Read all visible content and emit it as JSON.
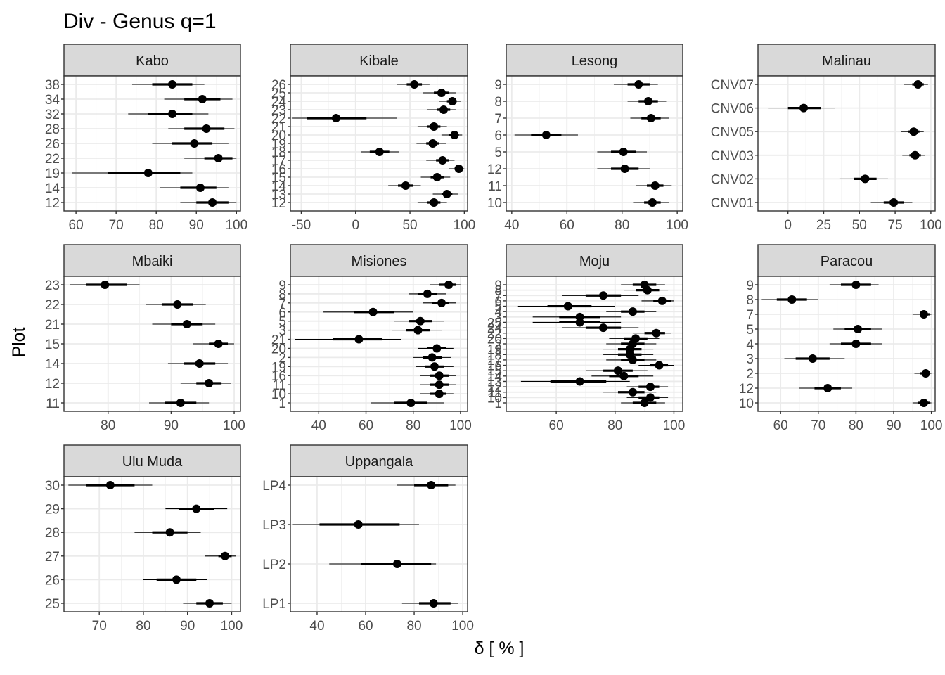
{
  "title": "Div - Genus q=1",
  "chart_data": {
    "type": "forest",
    "title": "Div - Genus q=1",
    "xlabel": "δ [ % ]",
    "ylabel": "Plot",
    "grid": true,
    "panels": [
      {
        "name": "Kabo",
        "xlim": [
          57,
          101
        ],
        "xticks": [
          60,
          70,
          80,
          90,
          100
        ],
        "points": [
          {
            "plot": "38",
            "est": 84,
            "lo": 79,
            "hi": 89,
            "llo": 74,
            "hhi": 92
          },
          {
            "plot": "34",
            "est": 91.5,
            "lo": 87,
            "hi": 96,
            "llo": 82,
            "hhi": 99
          },
          {
            "plot": "32",
            "est": 84,
            "lo": 78,
            "hi": 89,
            "llo": 73,
            "hhi": 93
          },
          {
            "plot": "28",
            "est": 92.5,
            "lo": 87,
            "hi": 97,
            "llo": 83,
            "hhi": 99.5
          },
          {
            "plot": "26",
            "est": 89.5,
            "lo": 84,
            "hi": 94,
            "llo": 79,
            "hhi": 98
          },
          {
            "plot": "22",
            "est": 95.5,
            "lo": 92,
            "hi": 99,
            "llo": 87,
            "hhi": 100
          },
          {
            "plot": "19",
            "est": 78,
            "lo": 68,
            "hi": 86,
            "llo": 59,
            "hhi": 89
          },
          {
            "plot": "14",
            "est": 91,
            "lo": 86,
            "hi": 95,
            "llo": 81,
            "hhi": 98
          },
          {
            "plot": "12",
            "est": 94,
            "lo": 90,
            "hi": 98,
            "llo": 86,
            "hhi": 100
          }
        ]
      },
      {
        "name": "Kibale",
        "xlim": [
          -60,
          103
        ],
        "xticks": [
          -50,
          0,
          50,
          100
        ],
        "points": [
          {
            "plot": "26",
            "est": 54,
            "lo": 47,
            "hi": 61,
            "llo": 38,
            "hhi": 68
          },
          {
            "plot": "25",
            "est": 79,
            "lo": 72,
            "hi": 86,
            "llo": 62,
            "hhi": 92
          },
          {
            "plot": "24",
            "est": 89,
            "lo": 84,
            "hi": 93,
            "llo": 77,
            "hhi": 97
          },
          {
            "plot": "23",
            "est": 81,
            "lo": 75,
            "hi": 87,
            "llo": 66,
            "hhi": 92
          },
          {
            "plot": "22",
            "est": -18,
            "lo": -45,
            "hi": 10,
            "llo": -58,
            "hhi": 38
          },
          {
            "plot": "21",
            "est": 72,
            "lo": 66,
            "hi": 78,
            "llo": 57,
            "hhi": 84
          },
          {
            "plot": "20",
            "est": 91,
            "lo": 86,
            "hi": 95,
            "llo": 79,
            "hhi": 98
          },
          {
            "plot": "19",
            "est": 71,
            "lo": 65,
            "hi": 77,
            "llo": 56,
            "hhi": 83
          },
          {
            "plot": "18",
            "est": 22,
            "lo": 13,
            "hi": 31,
            "llo": 5,
            "hhi": 40
          },
          {
            "plot": "17",
            "est": 80,
            "lo": 74,
            "hi": 86,
            "llo": 65,
            "hhi": 91
          },
          {
            "plot": "16",
            "est": 95,
            "lo": 91,
            "hi": 98,
            "llo": 86,
            "hhi": 100
          },
          {
            "plot": "15",
            "est": 75,
            "lo": 69,
            "hi": 81,
            "llo": 60,
            "hhi": 87
          },
          {
            "plot": "14",
            "est": 46,
            "lo": 39,
            "hi": 53,
            "llo": 30,
            "hhi": 60
          },
          {
            "plot": "13",
            "est": 84,
            "lo": 79,
            "hi": 89,
            "llo": 71,
            "hhi": 94
          },
          {
            "plot": "12",
            "est": 72,
            "lo": 66,
            "hi": 78,
            "llo": 57,
            "hhi": 84
          }
        ]
      },
      {
        "name": "Lesong",
        "xlim": [
          38,
          102
        ],
        "xticks": [
          40,
          60,
          80,
          100
        ],
        "points": [
          {
            "plot": "9",
            "est": 86,
            "lo": 82,
            "hi": 90,
            "llo": 77,
            "hhi": 93
          },
          {
            "plot": "8",
            "est": 89.5,
            "lo": 86,
            "hi": 93,
            "llo": 82,
            "hhi": 96
          },
          {
            "plot": "7",
            "est": 90.5,
            "lo": 87,
            "hi": 94,
            "llo": 83,
            "hhi": 97
          },
          {
            "plot": "6",
            "est": 52.5,
            "lo": 47,
            "hi": 58,
            "llo": 41,
            "hhi": 64
          },
          {
            "plot": "5",
            "est": 80.5,
            "lo": 76,
            "hi": 85,
            "llo": 71,
            "hhi": 89
          },
          {
            "plot": "12",
            "est": 81,
            "lo": 76,
            "hi": 86,
            "llo": 71,
            "hhi": 90
          },
          {
            "plot": "11",
            "est": 92,
            "lo": 89,
            "hi": 95,
            "llo": 85,
            "hhi": 98
          },
          {
            "plot": "10",
            "est": 91,
            "lo": 88,
            "hi": 94,
            "llo": 84,
            "hhi": 97
          }
        ]
      },
      {
        "name": "Malinau",
        "xlim": [
          -21,
          103
        ],
        "xticks": [
          0,
          25,
          50,
          75,
          100
        ],
        "points": [
          {
            "plot": "CNV07",
            "est": 91,
            "lo": 87,
            "hi": 95,
            "llo": 81,
            "hhi": 98
          },
          {
            "plot": "CNV06",
            "est": 11,
            "lo": 0,
            "hi": 23,
            "llo": -14,
            "hhi": 33
          },
          {
            "plot": "CNV05",
            "est": 88,
            "lo": 84,
            "hi": 92,
            "llo": 79,
            "hhi": 95
          },
          {
            "plot": "CNV03",
            "est": 89,
            "lo": 85,
            "hi": 93,
            "llo": 80,
            "hhi": 96
          },
          {
            "plot": "CNV02",
            "est": 54,
            "lo": 46,
            "hi": 62,
            "llo": 36,
            "hhi": 70
          },
          {
            "plot": "CNV01",
            "est": 74,
            "lo": 67,
            "hi": 81,
            "llo": 58,
            "hhi": 87
          }
        ]
      },
      {
        "name": "Mbaiki",
        "xlim": [
          73,
          101
        ],
        "xticks": [
          80,
          90,
          100
        ],
        "points": [
          {
            "plot": "23",
            "est": 79.5,
            "lo": 76.5,
            "hi": 83,
            "llo": 74,
            "hhi": 85
          },
          {
            "plot": "22",
            "est": 91,
            "lo": 88.5,
            "hi": 93.5,
            "llo": 86,
            "hhi": 95.5
          },
          {
            "plot": "21",
            "est": 92.5,
            "lo": 90,
            "hi": 95,
            "llo": 87,
            "hhi": 97
          },
          {
            "plot": "15",
            "est": 97.5,
            "lo": 96,
            "hi": 99,
            "llo": 93.5,
            "hhi": 100
          },
          {
            "plot": "14",
            "est": 94.5,
            "lo": 92,
            "hi": 97,
            "llo": 89.5,
            "hhi": 99
          },
          {
            "plot": "12",
            "est": 96,
            "lo": 94,
            "hi": 98,
            "llo": 91.5,
            "hhi": 99.5
          },
          {
            "plot": "11",
            "est": 91.5,
            "lo": 89,
            "hi": 94,
            "llo": 86.5,
            "hhi": 96
          }
        ]
      },
      {
        "name": "Misiones",
        "xlim": [
          28,
          103
        ],
        "xticks": [
          40,
          60,
          80,
          100
        ],
        "points": [
          {
            "plot": "9",
            "est": 95,
            "lo": 91,
            "hi": 98,
            "llo": 87,
            "hhi": 100
          },
          {
            "plot": "8",
            "est": 86,
            "lo": 82,
            "hi": 90,
            "llo": 78,
            "hhi": 94
          },
          {
            "plot": "7",
            "est": 92,
            "lo": 88,
            "hi": 95,
            "llo": 84,
            "hhi": 98
          },
          {
            "plot": "6",
            "est": 63,
            "lo": 55,
            "hi": 72,
            "llo": 42,
            "hhi": 80
          },
          {
            "plot": "5",
            "est": 83,
            "lo": 78,
            "hi": 88,
            "llo": 72,
            "hhi": 93
          },
          {
            "plot": "3",
            "est": 82,
            "lo": 77,
            "hi": 87,
            "llo": 71,
            "hhi": 92
          },
          {
            "plot": "21",
            "est": 57,
            "lo": 46,
            "hi": 67,
            "llo": 30,
            "hhi": 75
          },
          {
            "plot": "20",
            "est": 90,
            "lo": 86,
            "hi": 94,
            "llo": 82,
            "hhi": 97
          },
          {
            "plot": "2",
            "est": 88,
            "lo": 84,
            "hi": 92,
            "llo": 80,
            "hhi": 96
          },
          {
            "plot": "19",
            "est": 89,
            "lo": 85,
            "hi": 93,
            "llo": 81,
            "hhi": 97
          },
          {
            "plot": "16",
            "est": 91,
            "lo": 87,
            "hi": 95,
            "llo": 83,
            "hhi": 98
          },
          {
            "plot": "11",
            "est": 91,
            "lo": 87,
            "hi": 95,
            "llo": 83,
            "hhi": 98
          },
          {
            "plot": "10",
            "est": 91,
            "lo": 87,
            "hi": 94,
            "llo": 83,
            "hhi": 97
          },
          {
            "plot": "1",
            "est": 79,
            "lo": 72,
            "hi": 86,
            "llo": 62,
            "hhi": 93
          }
        ]
      },
      {
        "name": "Moju",
        "xlim": [
          43,
          103
        ],
        "xticks": [
          60,
          80,
          100
        ],
        "points": [
          {
            "plot": "9",
            "est": 90,
            "lo": 86,
            "hi": 94,
            "llo": 82,
            "hhi": 97
          },
          {
            "plot": "8",
            "est": 91,
            "lo": 87,
            "hi": 95,
            "llo": 83,
            "hhi": 98
          },
          {
            "plot": "7",
            "est": 76,
            "lo": 70,
            "hi": 82,
            "llo": 62,
            "hhi": 88
          },
          {
            "plot": "6",
            "est": 96,
            "lo": 93,
            "hi": 99,
            "llo": 89,
            "hhi": 100
          },
          {
            "plot": "5",
            "est": 64,
            "lo": 57,
            "hi": 72,
            "llo": 47,
            "hhi": 80
          },
          {
            "plot": "4",
            "est": 86,
            "lo": 82,
            "hi": 90,
            "llo": 77,
            "hhi": 94
          },
          {
            "plot": "3",
            "est": 68,
            "lo": 61,
            "hi": 75,
            "llo": 52,
            "hhi": 82
          },
          {
            "plot": "25",
            "est": 68,
            "lo": 61,
            "hi": 75,
            "llo": 52,
            "hhi": 82
          },
          {
            "plot": "24",
            "est": 76,
            "lo": 70,
            "hi": 82,
            "llo": 62,
            "hhi": 88
          },
          {
            "plot": "22",
            "est": 94,
            "lo": 90,
            "hi": 97,
            "llo": 86,
            "hhi": 99
          },
          {
            "plot": "20",
            "est": 87,
            "lo": 83,
            "hi": 91,
            "llo": 78,
            "hhi": 95
          },
          {
            "plot": "2",
            "est": 86,
            "lo": 82,
            "hi": 90,
            "llo": 77,
            "hhi": 94
          },
          {
            "plot": "19",
            "est": 85,
            "lo": 81,
            "hi": 89,
            "llo": 76,
            "hhi": 93
          },
          {
            "plot": "18",
            "est": 85,
            "lo": 81,
            "hi": 89,
            "llo": 76,
            "hhi": 93
          },
          {
            "plot": "17",
            "est": 86,
            "lo": 82,
            "hi": 90,
            "llo": 77,
            "hhi": 94
          },
          {
            "plot": "16",
            "est": 95,
            "lo": 92,
            "hi": 98,
            "llo": 88,
            "hhi": 100
          },
          {
            "plot": "15",
            "est": 81,
            "lo": 76,
            "hi": 86,
            "llo": 70,
            "hhi": 91
          },
          {
            "plot": "14",
            "est": 83,
            "lo": 78,
            "hi": 88,
            "llo": 72,
            "hhi": 93
          },
          {
            "plot": "13",
            "est": 68,
            "lo": 58,
            "hi": 77,
            "llo": 48,
            "hhi": 85
          },
          {
            "plot": "12",
            "est": 92,
            "lo": 88,
            "hi": 95,
            "llo": 84,
            "hhi": 98
          },
          {
            "plot": "11",
            "est": 86,
            "lo": 81,
            "hi": 90,
            "llo": 76,
            "hhi": 94
          },
          {
            "plot": "10",
            "est": 92,
            "lo": 88,
            "hi": 95,
            "llo": 84,
            "hhi": 98
          },
          {
            "plot": "1",
            "est": 90,
            "lo": 86,
            "hi": 94,
            "llo": 82,
            "hhi": 97
          }
        ]
      },
      {
        "name": "Paracou",
        "xlim": [
          54,
          101
        ],
        "xticks": [
          60,
          70,
          80,
          90,
          100
        ],
        "points": [
          {
            "plot": "9",
            "est": 80,
            "lo": 76,
            "hi": 84,
            "llo": 73,
            "hhi": 86
          },
          {
            "plot": "8",
            "est": 63,
            "lo": 59,
            "hi": 67,
            "llo": 55,
            "hhi": 70
          },
          {
            "plot": "7",
            "est": 98,
            "lo": 97,
            "hi": 99.5,
            "llo": 95,
            "hhi": 100
          },
          {
            "plot": "5",
            "est": 80.5,
            "lo": 77,
            "hi": 84,
            "llo": 74,
            "hhi": 87
          },
          {
            "plot": "4",
            "est": 80,
            "lo": 76,
            "hi": 84,
            "llo": 73,
            "hhi": 87
          },
          {
            "plot": "3",
            "est": 68.5,
            "lo": 64,
            "hi": 73,
            "llo": 61,
            "hhi": 77
          },
          {
            "plot": "2",
            "est": 98.5,
            "lo": 97,
            "hi": 99.5,
            "llo": 95.5,
            "hhi": 100
          },
          {
            "plot": "12",
            "est": 72.5,
            "lo": 69,
            "hi": 76,
            "llo": 65,
            "hhi": 79
          },
          {
            "plot": "10",
            "est": 98,
            "lo": 96.5,
            "hi": 99.5,
            "llo": 95,
            "hhi": 100
          }
        ]
      },
      {
        "name": "Ulu Muda",
        "xlim": [
          62,
          102
        ],
        "xticks": [
          70,
          80,
          90,
          100
        ],
        "points": [
          {
            "plot": "30",
            "est": 72.5,
            "lo": 67,
            "hi": 78,
            "llo": 63,
            "hhi": 82
          },
          {
            "plot": "29",
            "est": 92,
            "lo": 88,
            "hi": 96,
            "llo": 85,
            "hhi": 99
          },
          {
            "plot": "28",
            "est": 86,
            "lo": 82,
            "hi": 90,
            "llo": 78,
            "hhi": 93
          },
          {
            "plot": "27",
            "est": 98.5,
            "lo": 97,
            "hi": 100,
            "llo": 94,
            "hhi": 101
          },
          {
            "plot": "26",
            "est": 87.5,
            "lo": 83,
            "hi": 92,
            "llo": 80,
            "hhi": 94.5
          },
          {
            "plot": "25",
            "est": 95,
            "lo": 92,
            "hi": 98,
            "llo": 89,
            "hhi": 100
          }
        ]
      },
      {
        "name": "Uppangala",
        "xlim": [
          29,
          102
        ],
        "xticks": [
          40,
          60,
          80,
          100
        ],
        "points": [
          {
            "plot": "LP4",
            "est": 87,
            "lo": 80,
            "hi": 94,
            "llo": 73,
            "hhi": 97
          },
          {
            "plot": "LP3",
            "est": 57,
            "lo": 41,
            "hi": 74,
            "llo": 30,
            "hhi": 82
          },
          {
            "plot": "LP2",
            "est": 73,
            "lo": 58,
            "hi": 87,
            "llo": 45,
            "hhi": 89
          },
          {
            "plot": "LP1",
            "est": 88,
            "lo": 82,
            "hi": 95,
            "llo": 75,
            "hhi": 98
          }
        ]
      }
    ]
  }
}
